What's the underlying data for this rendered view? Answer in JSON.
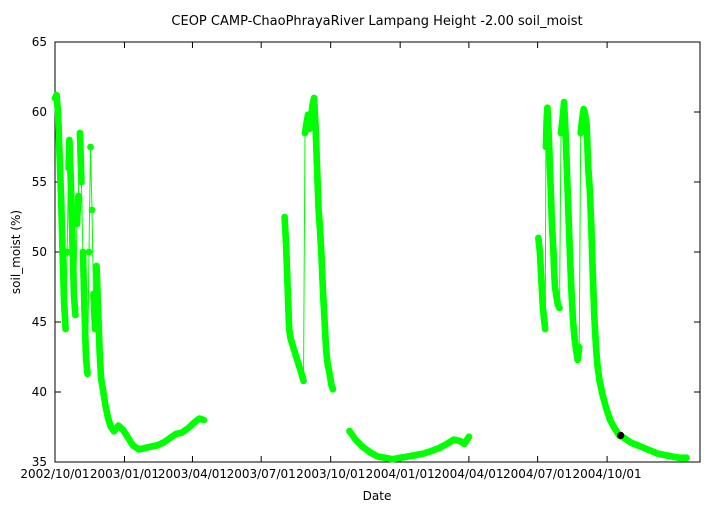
{
  "chart_data": {
    "type": "scatter",
    "title": "CEOP CAMP-ChaoPhrayaRiver Lampang Height -2.00 soil_moist",
    "xlabel": "Date",
    "ylabel": "soil_moist (%)",
    "ylim": [
      35,
      65
    ],
    "yticks": [
      35,
      40,
      45,
      50,
      55,
      60,
      65
    ],
    "xlim": [
      "2002-10-01",
      "2005-02-01"
    ],
    "xticks": [
      {
        "date": "2002-10-01",
        "label": "2002/10/01"
      },
      {
        "date": "2003-01-01",
        "label": "2003/01/01"
      },
      {
        "date": "2003-04-01",
        "label": "2003/04/01"
      },
      {
        "date": "2003-07-01",
        "label": "2003/07/01"
      },
      {
        "date": "2003-10-01",
        "label": "2003/10/01"
      },
      {
        "date": "2004-01-01",
        "label": "2004/01/01"
      },
      {
        "date": "2004-04-01",
        "label": "2004/04/01"
      },
      {
        "date": "2004-07-01",
        "label": "2004/07/01"
      },
      {
        "date": "2004-10-01",
        "label": "2004/10/01"
      }
    ],
    "grid": false,
    "series_color": "#00ff00",
    "marker_color": "#000000",
    "series": [
      {
        "points": [
          [
            "2002-10-01",
            61.0
          ],
          [
            "2002-10-03",
            61.2
          ],
          [
            "2002-10-05",
            60.0
          ],
          [
            "2002-10-07",
            57.0
          ],
          [
            "2002-10-09",
            54.0
          ],
          [
            "2002-10-11",
            50.0
          ],
          [
            "2002-10-13",
            46.5
          ],
          [
            "2002-10-15",
            44.5
          ],
          [
            "2002-10-17",
            50.0
          ],
          [
            "2002-10-19",
            56.0
          ],
          [
            "2002-10-20",
            58.0
          ],
          [
            "2002-10-22",
            55.0
          ],
          [
            "2002-10-24",
            51.0
          ],
          [
            "2002-10-26",
            47.0
          ],
          [
            "2002-10-28",
            45.5
          ],
          [
            "2002-10-30",
            52.0
          ],
          [
            "2002-11-01",
            54.0
          ],
          [
            "2002-11-03",
            58.5
          ],
          [
            "2002-11-05",
            55.0
          ],
          [
            "2002-11-07",
            50.0
          ],
          [
            "2002-11-09",
            46.0
          ],
          [
            "2002-11-11",
            42.5
          ],
          [
            "2002-11-13",
            41.3
          ],
          [
            "2002-11-15",
            50.0
          ],
          [
            "2002-11-17",
            57.5
          ],
          [
            "2002-11-19",
            53.0
          ],
          [
            "2002-11-21",
            47.0
          ],
          [
            "2002-11-23",
            44.5
          ],
          [
            "2002-11-25",
            49.0
          ],
          [
            "2002-11-27",
            46.0
          ],
          [
            "2002-11-29",
            43.0
          ],
          [
            "2002-12-01",
            41.0
          ],
          [
            "2002-12-04",
            40.0
          ],
          [
            "2002-12-07",
            39.0
          ],
          [
            "2002-12-10",
            38.2
          ],
          [
            "2002-12-14",
            37.5
          ],
          [
            "2002-12-18",
            37.2
          ],
          [
            "2002-12-24",
            37.6
          ],
          [
            "2002-12-30",
            37.3
          ],
          [
            "2003-01-05",
            36.8
          ],
          [
            "2003-01-12",
            36.2
          ],
          [
            "2003-01-20",
            35.9
          ],
          [
            "2003-01-28",
            36.0
          ],
          [
            "2003-02-05",
            36.1
          ],
          [
            "2003-02-14",
            36.2
          ],
          [
            "2003-02-22",
            36.4
          ],
          [
            "2003-03-02",
            36.7
          ],
          [
            "2003-03-10",
            37.0
          ],
          [
            "2003-03-18",
            37.1
          ],
          [
            "2003-03-26",
            37.4
          ],
          [
            "2003-04-03",
            37.8
          ],
          [
            "2003-04-10",
            38.1
          ],
          [
            "2003-04-16",
            38.0
          ]
        ]
      },
      {
        "points": [
          [
            "2003-08-01",
            52.5
          ],
          [
            "2003-08-03",
            50.5
          ],
          [
            "2003-08-05",
            47.5
          ],
          [
            "2003-08-07",
            44.5
          ],
          [
            "2003-08-09",
            43.8
          ],
          [
            "2003-08-24",
            41.2
          ],
          [
            "2003-08-26",
            40.8
          ],
          [
            "2003-08-28",
            58.5
          ],
          [
            "2003-08-30",
            59.2
          ],
          [
            "2003-09-01",
            59.8
          ],
          [
            "2003-09-03",
            58.8
          ],
          [
            "2003-09-05",
            59.5
          ],
          [
            "2003-09-07",
            60.5
          ],
          [
            "2003-09-09",
            61.0
          ],
          [
            "2003-09-11",
            59.0
          ],
          [
            "2003-09-13",
            56.0
          ],
          [
            "2003-09-15",
            53.0
          ],
          [
            "2003-09-17",
            51.5
          ],
          [
            "2003-09-19",
            49.5
          ],
          [
            "2003-09-21",
            47.0
          ],
          [
            "2003-09-23",
            45.0
          ],
          [
            "2003-09-25",
            43.0
          ],
          [
            "2003-09-27",
            42.0
          ],
          [
            "2003-09-29",
            41.5
          ],
          [
            "2003-10-02",
            40.5
          ],
          [
            "2003-10-04",
            40.2
          ]
        ]
      },
      {
        "points": [
          [
            "2003-10-26",
            37.2
          ],
          [
            "2003-11-03",
            36.6
          ],
          [
            "2003-11-12",
            36.1
          ],
          [
            "2003-11-22",
            35.7
          ],
          [
            "2003-12-02",
            35.4
          ],
          [
            "2003-12-12",
            35.3
          ],
          [
            "2003-12-22",
            35.2
          ],
          [
            "2004-01-01",
            35.3
          ],
          [
            "2004-01-12",
            35.4
          ],
          [
            "2004-01-22",
            35.5
          ],
          [
            "2004-02-01",
            35.6
          ],
          [
            "2004-02-12",
            35.8
          ],
          [
            "2004-02-22",
            36.0
          ],
          [
            "2004-03-03",
            36.3
          ],
          [
            "2004-03-12",
            36.6
          ],
          [
            "2004-03-20",
            36.5
          ],
          [
            "2004-03-26",
            36.3
          ],
          [
            "2004-04-01",
            36.8
          ]
        ]
      },
      {
        "points": [
          [
            "2004-07-02",
            51.0
          ],
          [
            "2004-07-04",
            50.0
          ],
          [
            "2004-07-06",
            48.0
          ],
          [
            "2004-07-08",
            46.0
          ],
          [
            "2004-07-10",
            45.0
          ],
          [
            "2004-07-11",
            44.5
          ],
          [
            "2004-07-12",
            57.5
          ],
          [
            "2004-07-13",
            59.5
          ],
          [
            "2004-07-14",
            60.3
          ],
          [
            "2004-07-16",
            58.0
          ],
          [
            "2004-07-18",
            55.0
          ],
          [
            "2004-07-20",
            52.0
          ],
          [
            "2004-07-22",
            50.0
          ],
          [
            "2004-07-23",
            48.5
          ],
          [
            "2004-07-24",
            47.5
          ],
          [
            "2004-07-26",
            46.8
          ],
          [
            "2004-07-28",
            46.2
          ],
          [
            "2004-07-30",
            46.0
          ],
          [
            "2004-08-01",
            58.5
          ],
          [
            "2004-08-03",
            59.5
          ],
          [
            "2004-08-05",
            60.7
          ],
          [
            "2004-08-07",
            58.5
          ],
          [
            "2004-08-09",
            55.5
          ],
          [
            "2004-08-11",
            52.5
          ],
          [
            "2004-08-13",
            49.5
          ],
          [
            "2004-08-15",
            47.0
          ],
          [
            "2004-08-17",
            45.0
          ],
          [
            "2004-08-19",
            43.8
          ],
          [
            "2004-08-21",
            43.0
          ],
          [
            "2004-08-23",
            42.3
          ],
          [
            "2004-08-25",
            43.2
          ],
          [
            "2004-08-27",
            58.5
          ],
          [
            "2004-08-29",
            59.5
          ],
          [
            "2004-08-31",
            60.2
          ],
          [
            "2004-09-02",
            59.8
          ],
          [
            "2004-09-04",
            59.0
          ],
          [
            "2004-09-06",
            56.0
          ],
          [
            "2004-09-08",
            54.5
          ],
          [
            "2004-09-10",
            52.0
          ],
          [
            "2004-09-12",
            48.5
          ],
          [
            "2004-09-14",
            45.5
          ],
          [
            "2004-09-16",
            43.5
          ],
          [
            "2004-09-18",
            42.0
          ],
          [
            "2004-09-21",
            40.8
          ],
          [
            "2004-09-25",
            39.8
          ],
          [
            "2004-09-30",
            38.8
          ],
          [
            "2004-10-05",
            38.0
          ],
          [
            "2004-10-11",
            37.4
          ],
          [
            "2004-10-17",
            36.9
          ],
          [
            "2004-10-24",
            36.7
          ],
          [
            "2004-11-01",
            36.4
          ],
          [
            "2004-11-10",
            36.2
          ],
          [
            "2004-11-19",
            36.0
          ],
          [
            "2004-11-28",
            35.8
          ],
          [
            "2004-12-07",
            35.6
          ],
          [
            "2004-12-16",
            35.5
          ],
          [
            "2004-12-25",
            35.4
          ],
          [
            "2005-01-05",
            35.3
          ],
          [
            "2005-01-14",
            35.3
          ]
        ]
      }
    ],
    "markers": [
      {
        "x": "2004-10-19",
        "y": 36.9
      }
    ]
  }
}
